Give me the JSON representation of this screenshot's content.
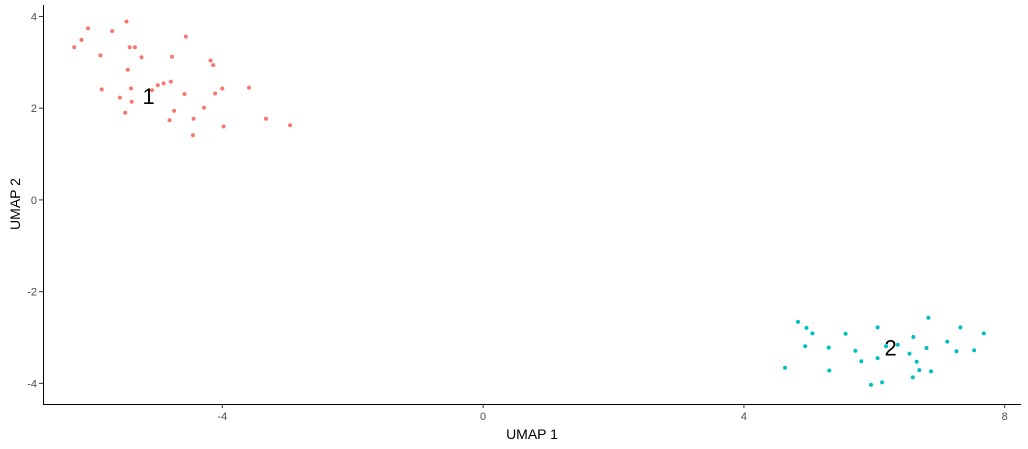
{
  "chart_data": {
    "type": "scatter",
    "title": "",
    "xlabel": "UMAP 1",
    "ylabel": "UMAP 2",
    "xlim": [
      -6.75,
      8.25
    ],
    "ylim": [
      -4.45,
      4.25
    ],
    "x_ticks": [
      -4,
      0,
      4,
      8
    ],
    "y_ticks": [
      -4,
      -2,
      0,
      2,
      4
    ],
    "x_tick_labels": [
      "-4",
      "0",
      "4",
      "8"
    ],
    "y_tick_labels": [
      "-4",
      "-2",
      "0",
      "2",
      "4"
    ],
    "grid": false,
    "legend": "none",
    "series": [
      {
        "label": "1",
        "color": "#f8766d",
        "label_position": [
          -5.13,
          2.27
        ],
        "points": [
          [
            -6.27,
            3.33
          ],
          [
            -6.16,
            3.49
          ],
          [
            -6.06,
            3.74
          ],
          [
            -5.87,
            3.15
          ],
          [
            -5.85,
            2.41
          ],
          [
            -5.69,
            3.68
          ],
          [
            -5.57,
            2.23
          ],
          [
            -5.49,
            1.9
          ],
          [
            -5.47,
            3.89
          ],
          [
            -5.45,
            2.84
          ],
          [
            -5.42,
            3.33
          ],
          [
            -5.4,
            2.43
          ],
          [
            -5.39,
            2.14
          ],
          [
            -5.34,
            3.33
          ],
          [
            -5.24,
            3.11
          ],
          [
            -5.08,
            2.39
          ],
          [
            -4.99,
            2.5
          ],
          [
            -4.9,
            2.54
          ],
          [
            -4.81,
            1.74
          ],
          [
            -4.79,
            2.58
          ],
          [
            -4.77,
            3.12
          ],
          [
            -4.74,
            1.94
          ],
          [
            -4.58,
            2.31
          ],
          [
            -4.56,
            3.56
          ],
          [
            -4.45,
            1.41
          ],
          [
            -4.44,
            1.77
          ],
          [
            -4.28,
            2.01
          ],
          [
            -4.18,
            3.04
          ],
          [
            -4.14,
            2.94
          ],
          [
            -4.11,
            2.32
          ],
          [
            -4.0,
            2.43
          ],
          [
            -3.98,
            1.6
          ],
          [
            -3.59,
            2.45
          ],
          [
            -3.33,
            1.77
          ],
          [
            -2.96,
            1.63
          ]
        ]
      },
      {
        "label": "2",
        "color": "#00bfc4",
        "label_position": [
          6.25,
          -3.22
        ],
        "points": [
          [
            4.63,
            -3.66
          ],
          [
            4.83,
            -2.66
          ],
          [
            4.94,
            -3.19
          ],
          [
            4.96,
            -2.79
          ],
          [
            5.05,
            -2.91
          ],
          [
            5.3,
            -3.22
          ],
          [
            5.31,
            -3.72
          ],
          [
            5.56,
            -2.92
          ],
          [
            5.71,
            -3.29
          ],
          [
            5.8,
            -3.52
          ],
          [
            5.95,
            -4.03
          ],
          [
            6.05,
            -2.78
          ],
          [
            6.05,
            -3.45
          ],
          [
            6.12,
            -3.98
          ],
          [
            6.18,
            -3.19
          ],
          [
            6.36,
            -3.16
          ],
          [
            6.54,
            -3.35
          ],
          [
            6.59,
            -3.87
          ],
          [
            6.6,
            -2.99
          ],
          [
            6.65,
            -3.53
          ],
          [
            6.69,
            -3.71
          ],
          [
            6.8,
            -3.23
          ],
          [
            6.83,
            -2.57
          ],
          [
            6.87,
            -3.74
          ],
          [
            7.12,
            -3.09
          ],
          [
            7.26,
            -3.3
          ],
          [
            7.32,
            -2.78
          ],
          [
            7.53,
            -3.28
          ],
          [
            7.68,
            -2.91
          ]
        ]
      }
    ]
  }
}
